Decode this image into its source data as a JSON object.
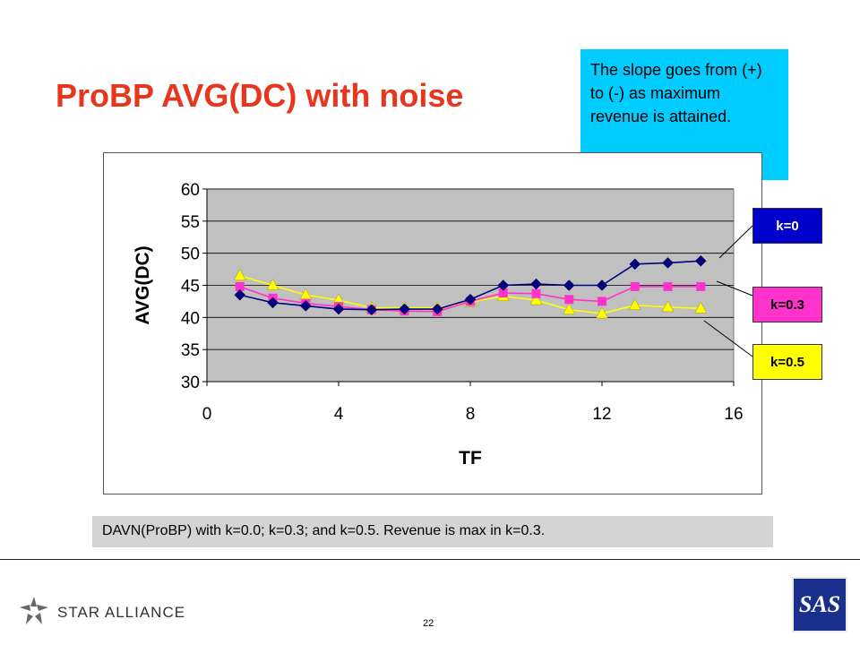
{
  "title": "ProBP AVG(DC) with noise",
  "callout": "The slope goes from (+) to (-) as maximum revenue is attained.",
  "caption": "DAVN(ProBP) with k=0.0; k=0.3; and k=0.5. Revenue is max in k=0.3.",
  "footer": {
    "alliance_text": "STAR ALLIANCE",
    "page_number": "22",
    "sas_logo_text": "SAS"
  },
  "legend": [
    {
      "label": "k=0",
      "bg": "#0000cc",
      "fg": "#ffffff"
    },
    {
      "label": "k=0.3",
      "bg": "#ff33cc",
      "fg": "#000000"
    },
    {
      "label": "k=0.5",
      "bg": "#ffff00",
      "fg": "#000000"
    }
  ],
  "chart_data": {
    "type": "line",
    "xlabel": "TF",
    "ylabel": "AVG(DC)",
    "xlim": [
      0,
      16
    ],
    "ylim": [
      30,
      60
    ],
    "x_ticks": [
      0,
      4,
      8,
      12,
      16
    ],
    "y_ticks": [
      30,
      35,
      40,
      45,
      50,
      55,
      60
    ],
    "grid": "horizontal",
    "plot_background": "#c0c0c0",
    "x": [
      1,
      2,
      3,
      4,
      5,
      6,
      7,
      8,
      9,
      10,
      11,
      12,
      13,
      14,
      15
    ],
    "series": [
      {
        "name": "k=0",
        "color": "#000080",
        "marker": "diamond",
        "values": [
          43.5,
          42.3,
          41.8,
          41.3,
          41.2,
          41.3,
          41.3,
          42.8,
          45.0,
          45.2,
          45.0,
          45.0,
          48.3,
          48.5,
          48.8
        ]
      },
      {
        "name": "k=0.3",
        "color": "#ff33cc",
        "marker": "square",
        "values": [
          44.8,
          43.0,
          42.2,
          41.7,
          41.2,
          41.0,
          40.9,
          42.5,
          43.8,
          43.7,
          42.8,
          42.5,
          44.8,
          44.8,
          44.8
        ]
      },
      {
        "name": "k=0.5",
        "color": "#ffff00",
        "marker": "triangle",
        "values": [
          46.5,
          45.0,
          43.5,
          42.7,
          41.5,
          41.5,
          41.5,
          42.4,
          43.3,
          42.7,
          41.2,
          40.6,
          41.9,
          41.6,
          41.4
        ]
      }
    ]
  }
}
